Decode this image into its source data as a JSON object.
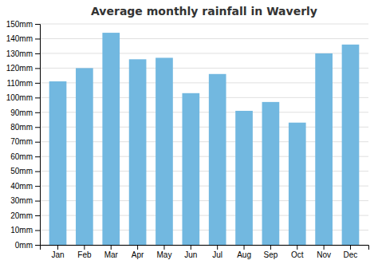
{
  "chart_data": {
    "type": "bar",
    "title": "Average monthly rainfall in Waverly",
    "categories": [
      "Jan",
      "Feb",
      "Mar",
      "Apr",
      "May",
      "Jun",
      "Jul",
      "Aug",
      "Sep",
      "Oct",
      "Nov",
      "Dec"
    ],
    "values": [
      111,
      120,
      144,
      126,
      127,
      103,
      116,
      91,
      97,
      83,
      130,
      136
    ],
    "color": "#72b8e0",
    "ylim": [
      0,
      150
    ],
    "yticks": [
      {
        "value": 0,
        "label": "0mm"
      },
      {
        "value": 10,
        "label": "10mm"
      },
      {
        "value": 20,
        "label": "20mm"
      },
      {
        "value": 30,
        "label": "30mm"
      },
      {
        "value": 40,
        "label": "40mm"
      },
      {
        "value": 50,
        "label": "50mm"
      },
      {
        "value": 60,
        "label": "60mm"
      },
      {
        "value": 70,
        "label": "70mm"
      },
      {
        "value": 80,
        "label": "80mm"
      },
      {
        "value": 90,
        "label": "90mm"
      },
      {
        "value": 100,
        "label": "100mm"
      },
      {
        "value": 110,
        "label": "110mm"
      },
      {
        "value": 120,
        "label": "120mm"
      },
      {
        "value": 130,
        "label": "130mm"
      },
      {
        "value": 140,
        "label": "140mm"
      },
      {
        "value": 150,
        "label": "150mm"
      }
    ],
    "grid": true
  }
}
